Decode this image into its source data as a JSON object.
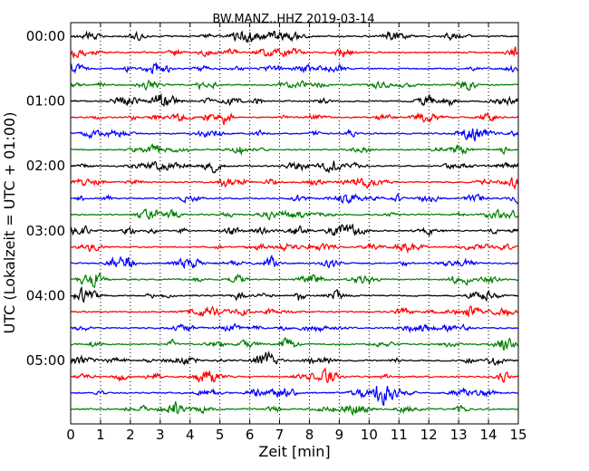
{
  "chart_data": {
    "type": "line",
    "title": "BW.MANZ..HHZ 2019-03-14",
    "xlabel": "Zeit  [min]",
    "ylabel": "UTC (Lokalzeit = UTC + 01:00)",
    "xlim": [
      0,
      15
    ],
    "x_ticks": [
      "0",
      "1",
      "2",
      "3",
      "4",
      "5",
      "6",
      "7",
      "8",
      "9",
      "10",
      "11",
      "12",
      "13",
      "14",
      "15"
    ],
    "y_ticks": [
      "00:00",
      "01:00",
      "02:00",
      "03:00",
      "04:00",
      "05:00"
    ],
    "grid": "vertical dotted",
    "trace_interval_min": 15,
    "trace_colors": [
      "#000000",
      "#ff0000",
      "#0000ff",
      "#007f00"
    ],
    "traces": [
      {
        "start": "00:00"
      },
      {
        "start": "00:15"
      },
      {
        "start": "00:30"
      },
      {
        "start": "00:45"
      },
      {
        "start": "01:00"
      },
      {
        "start": "01:15"
      },
      {
        "start": "01:30"
      },
      {
        "start": "01:45"
      },
      {
        "start": "02:00"
      },
      {
        "start": "02:15"
      },
      {
        "start": "02:30"
      },
      {
        "start": "02:45"
      },
      {
        "start": "03:00"
      },
      {
        "start": "03:15"
      },
      {
        "start": "03:30"
      },
      {
        "start": "03:45"
      },
      {
        "start": "04:00"
      },
      {
        "start": "04:15"
      },
      {
        "start": "04:30"
      },
      {
        "start": "04:45"
      },
      {
        "start": "05:00"
      },
      {
        "start": "05:15"
      },
      {
        "start": "05:30"
      },
      {
        "start": "05:45"
      }
    ]
  }
}
